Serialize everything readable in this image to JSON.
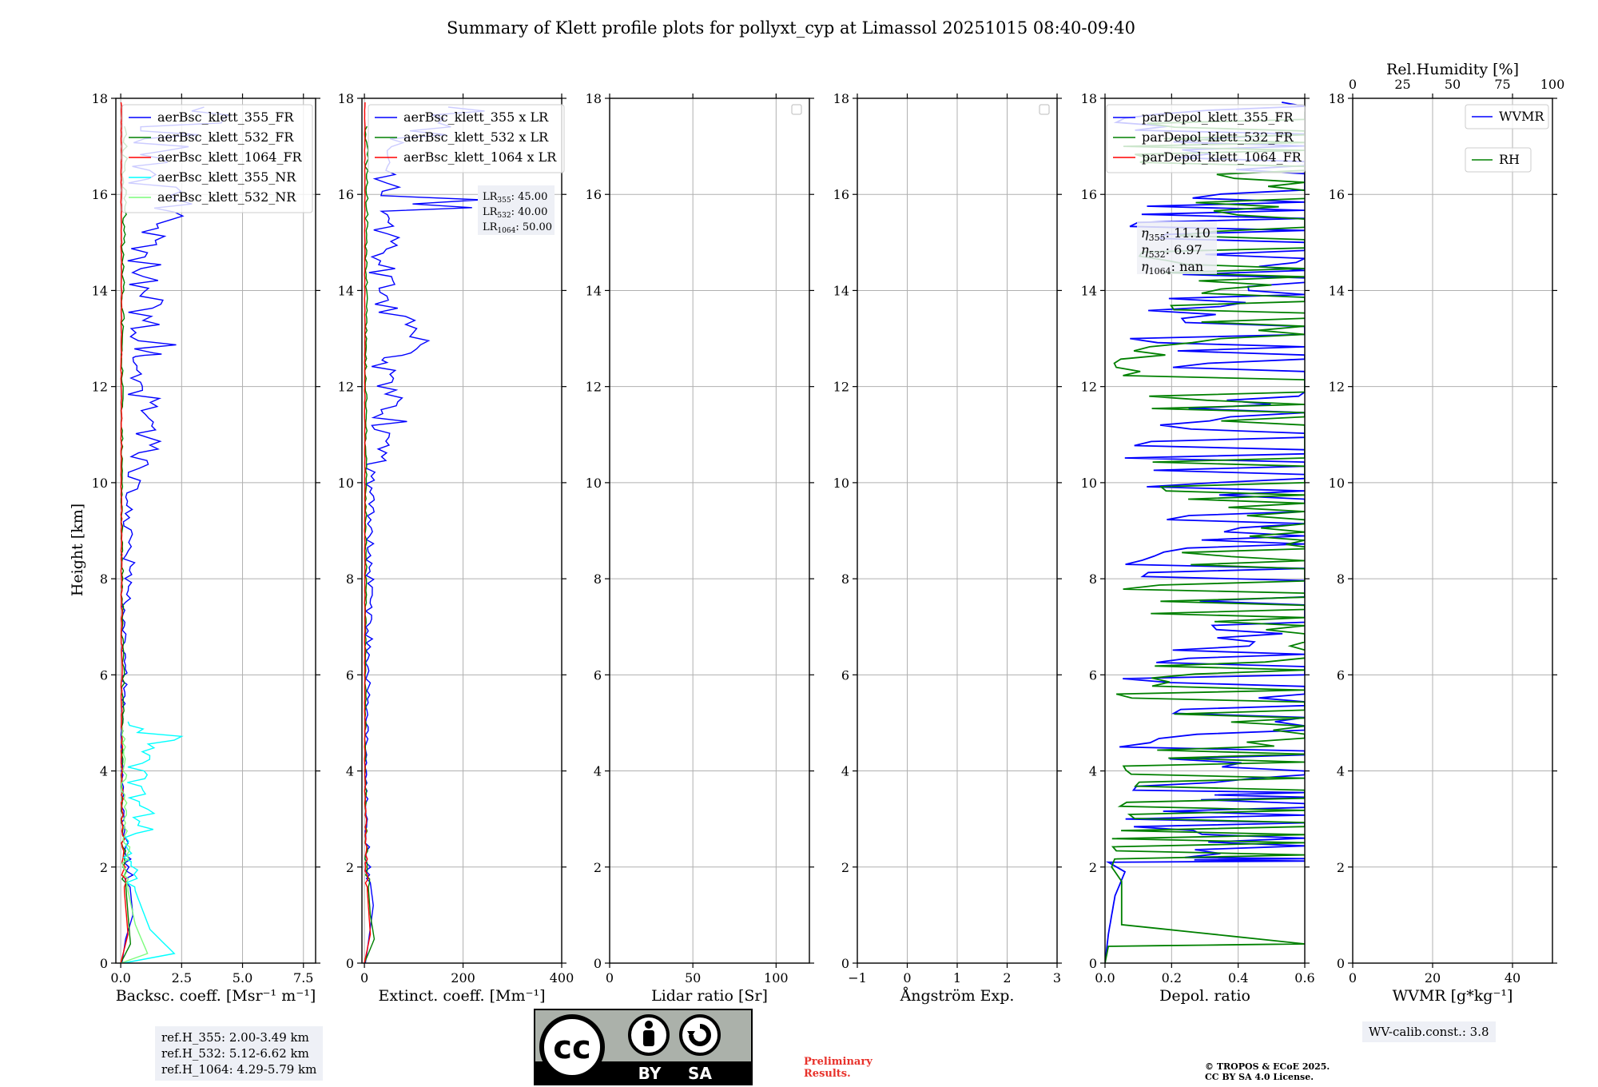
{
  "figure": {
    "title": "Summary of Klett profile plots for pollyxt_cyp at Limassol 20251015 08:40-09:40",
    "ylabel": "Height [km]",
    "ref_heights": [
      "ref.H_355: 2.00-3.49 km",
      "ref.H_532: 5.12-6.62 km",
      "ref.H_1064: 4.29-5.79 km"
    ],
    "wv_calib": "WV-calib.const.: 3.8",
    "preliminary": [
      "Preliminary",
      "Results."
    ],
    "copyright": [
      "© TROPOS & ECoE 2025.",
      "CC BY SA 4.0 License."
    ],
    "license_badge": {
      "icon": "cc-by-sa-icon",
      "by": "BY",
      "sa": "SA",
      "cc": "cc"
    },
    "colors": {
      "blue": "#0000ff",
      "green": "#008000",
      "red": "#ff0000",
      "cyan": "#00ffff",
      "lime": "#7cfc7c",
      "grid": "#b0b0b0"
    }
  },
  "chart_data": [
    {
      "type": "line",
      "name": "backscatter",
      "xlabel": "Backsc. coeff. [Msr⁻¹ m⁻¹]",
      "xlim": [
        -0.2,
        8.0
      ],
      "xticks": [
        "0.0",
        "2.5",
        "5.0",
        "7.5"
      ],
      "xtick_values": [
        0,
        2.5,
        5.0,
        7.5
      ],
      "ylim": [
        0,
        18
      ],
      "yticks": [
        "0",
        "2",
        "4",
        "6",
        "8",
        "10",
        "12",
        "14",
        "16",
        "18"
      ],
      "legend": [
        "aerBsc_klett_355_FR",
        "aerBsc_klett_532_FR",
        "aerBsc_klett_1064_FR",
        "aerBsc_klett_355_NR",
        "aerBsc_klett_532_NR"
      ],
      "series": [
        {
          "name": "aerBsc_klett_355_FR",
          "color": "blue",
          "points": [
            [
              0.05,
              0
            ],
            [
              0.2,
              0.5
            ],
            [
              0.5,
              1.0
            ],
            [
              0.3,
              2.0
            ],
            [
              0.1,
              3.0
            ],
            [
              0.05,
              5.0
            ],
            [
              0.2,
              5.8
            ],
            [
              0.1,
              6.6
            ],
            [
              0.4,
              8.5
            ],
            [
              0.3,
              9.1
            ],
            [
              0.6,
              10.3
            ],
            [
              1.4,
              10.7
            ],
            [
              0.9,
              11.5
            ],
            [
              1.6,
              12.6
            ],
            [
              2.3,
              12.7
            ],
            [
              1.2,
              13.8
            ],
            [
              1.0,
              14.7
            ],
            [
              1.5,
              15.3
            ],
            [
              2.2,
              15.8
            ],
            [
              0.8,
              16.5
            ],
            [
              4.2,
              17.9
            ]
          ]
        },
        {
          "name": "aerBsc_klett_532_FR",
          "color": "green",
          "points": [
            [
              0.0,
              0
            ],
            [
              0.4,
              0.4
            ],
            [
              0.3,
              1.0
            ],
            [
              0.15,
              2.0
            ],
            [
              0.05,
              3.5
            ],
            [
              0.1,
              6.0
            ],
            [
              0.05,
              10.0
            ],
            [
              0.1,
              14.0
            ],
            [
              0.2,
              17.5
            ]
          ]
        },
        {
          "name": "aerBsc_klett_1064_FR",
          "color": "red",
          "points": [
            [
              0.0,
              0
            ],
            [
              0.3,
              0.6
            ],
            [
              0.15,
              1.5
            ],
            [
              0.05,
              4.0
            ],
            [
              0.03,
              10.0
            ],
            [
              0.03,
              18.0
            ]
          ]
        },
        {
          "name": "aerBsc_klett_355_NR",
          "color": "cyan",
          "points": [
            [
              0.1,
              0
            ],
            [
              2.2,
              0.2
            ],
            [
              1.2,
              0.7
            ],
            [
              0.6,
              1.5
            ],
            [
              0.4,
              2.2
            ],
            [
              1.2,
              3.2
            ],
            [
              0.6,
              3.6
            ],
            [
              1.5,
              4.4
            ],
            [
              1.8,
              4.8
            ],
            [
              0.2,
              5.1
            ]
          ]
        },
        {
          "name": "aerBsc_klett_532_NR",
          "color": "lime",
          "points": [
            [
              0.0,
              0
            ],
            [
              1.1,
              0.2
            ],
            [
              0.6,
              0.8
            ],
            [
              0.3,
              1.5
            ],
            [
              0.2,
              3.0
            ],
            [
              0.1,
              5.0
            ]
          ]
        }
      ]
    },
    {
      "type": "line",
      "name": "extinction",
      "xlabel": "Extinct. coeff. [Mm⁻¹]",
      "xlim": [
        -5,
        400
      ],
      "xticks": [
        "0",
        "200",
        "400"
      ],
      "xtick_values": [
        0,
        200,
        400
      ],
      "ylim": [
        0,
        18
      ],
      "legend": [
        "aerBsc_klett_355 x LR",
        "aerBsc_klett_532 x LR",
        "aerBsc_klett_1064 x LR"
      ],
      "lidar_ratios": [
        "45.00",
        "40.00",
        "50.00"
      ],
      "series": [
        {
          "name": "aerBsc_klett_355 x LR",
          "color": "blue",
          "points": [
            [
              2,
              0
            ],
            [
              9,
              0.5
            ],
            [
              18,
              1.2
            ],
            [
              8,
              2.0
            ],
            [
              3,
              4.0
            ],
            [
              10,
              6.5
            ],
            [
              15,
              10.3
            ],
            [
              60,
              10.7
            ],
            [
              45,
              12.5
            ],
            [
              105,
              12.7
            ],
            [
              45,
              13.8
            ],
            [
              40,
              14.7
            ],
            [
              70,
              15.5
            ],
            [
              180,
              15.8
            ],
            [
              30,
              16.5
            ],
            [
              190,
              17.9
            ]
          ]
        },
        {
          "name": "aerBsc_klett_532 x LR",
          "color": "green",
          "points": [
            [
              0,
              0
            ],
            [
              20,
              0.5
            ],
            [
              12,
              1.0
            ],
            [
              5,
              2.0
            ],
            [
              2,
              4.0
            ],
            [
              3,
              8.0
            ],
            [
              4,
              14.0
            ],
            [
              6,
              17.5
            ]
          ]
        },
        {
          "name": "aerBsc_klett_1064 x LR",
          "color": "red",
          "points": [
            [
              0,
              0
            ],
            [
              12,
              0.6
            ],
            [
              6,
              1.5
            ],
            [
              1,
              4.0
            ],
            [
              1,
              18.0
            ]
          ]
        }
      ]
    },
    {
      "type": "line",
      "name": "lidar_ratio",
      "xlabel": "Lidar ratio [Sr]",
      "xlim": [
        0,
        120
      ],
      "xticks": [
        "0",
        "50",
        "100"
      ],
      "xtick_values": [
        0,
        50,
        100
      ],
      "ylim": [
        0,
        18
      ],
      "series": []
    },
    {
      "type": "line",
      "name": "angstrom",
      "xlabel": "Ångström Exp.",
      "xlim": [
        -1,
        3
      ],
      "xticks": [
        "−1",
        "0",
        "1",
        "2",
        "3"
      ],
      "xtick_values": [
        -1,
        0,
        1,
        2,
        3
      ],
      "ylim": [
        0,
        18
      ],
      "series": []
    },
    {
      "type": "line",
      "name": "depol",
      "xlabel": "Depol. ratio",
      "xlim": [
        0,
        0.6
      ],
      "xticks": [
        "0.0",
        "0.2",
        "0.4",
        "0.6"
      ],
      "xtick_values": [
        0,
        0.2,
        0.4,
        0.6
      ],
      "ylim": [
        0,
        18
      ],
      "legend": [
        "parDepol_klett_355_FR",
        "parDepol_klett_532_FR",
        "parDepol_klett_1064_FR"
      ],
      "eta": [
        "11.10",
        "6.97",
        "nan"
      ],
      "series": [
        {
          "name": "parDepol_klett_355_FR",
          "color": "blue",
          "points": [
            [
              0.0,
              0
            ],
            [
              0.01,
              0.6
            ],
            [
              0.03,
              1.4
            ],
            [
              0.06,
              1.9
            ],
            [
              0.01,
              2.1
            ],
            [
              0.6,
              2.2
            ],
            [
              0.05,
              3.0
            ],
            [
              0.6,
              3.4
            ],
            [
              0.1,
              3.6
            ],
            [
              0.6,
              4.0
            ],
            [
              0.05,
              4.5
            ],
            [
              0.6,
              5.2
            ],
            [
              0.1,
              6.0
            ],
            [
              0.6,
              7.2
            ],
            [
              0.05,
              8.3
            ],
            [
              0.6,
              9.4
            ],
            [
              0.08,
              10.6
            ],
            [
              0.6,
              11.8
            ],
            [
              0.1,
              13.0
            ],
            [
              0.6,
              14.5
            ],
            [
              0.05,
              15.5
            ],
            [
              0.6,
              16.6
            ],
            [
              0.1,
              17.5
            ],
            [
              0.6,
              18.0
            ]
          ]
        },
        {
          "name": "parDepol_klett_532_FR",
          "color": "green",
          "points": [
            [
              0.0,
              0
            ],
            [
              0.01,
              0.35
            ],
            [
              0.6,
              0.4
            ],
            [
              0.05,
              0.8
            ],
            [
              0.05,
              1.7
            ],
            [
              0.02,
              2.0
            ],
            [
              0.1,
              3.6
            ],
            [
              0.05,
              4.1
            ],
            [
              0.6,
              4.6
            ],
            [
              0.1,
              5.6
            ],
            [
              0.6,
              6.6
            ],
            [
              0.05,
              7.7
            ],
            [
              0.6,
              8.8
            ],
            [
              0.1,
              10.0
            ],
            [
              0.6,
              11.2
            ],
            [
              0.05,
              12.4
            ],
            [
              0.6,
              13.6
            ],
            [
              0.1,
              14.8
            ],
            [
              0.6,
              16.0
            ],
            [
              0.05,
              17.0
            ],
            [
              0.6,
              17.8
            ]
          ]
        },
        {
          "name": "parDepol_klett_1064_FR",
          "color": "red",
          "points": []
        }
      ]
    },
    {
      "type": "line",
      "name": "water_vapor",
      "xlabel": "WVMR [g*kg⁻¹]",
      "xlim": [
        0,
        50
      ],
      "xticks": [
        "0",
        "20",
        "40"
      ],
      "xtick_values": [
        0,
        20,
        40
      ],
      "top_xlabel": "Rel.Humidity [%]",
      "top_xlim": [
        0,
        100
      ],
      "top_xticks": [
        "0",
        "25",
        "50",
        "75",
        "100"
      ],
      "top_xtick_values": [
        0,
        25,
        50,
        75,
        100
      ],
      "ylim": [
        0,
        18
      ],
      "legend": [
        "WVMR",
        "RH"
      ],
      "series": []
    }
  ]
}
